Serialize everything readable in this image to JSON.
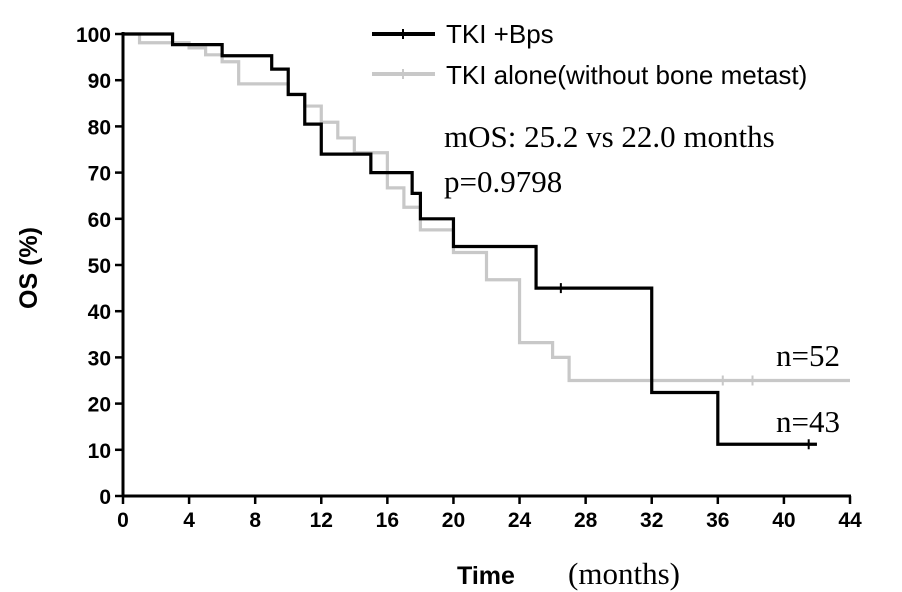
{
  "chart_data": {
    "type": "line",
    "subtype": "kaplan-meier-step",
    "xlabel": "Time",
    "xlabel_unit": "(months)",
    "ylabel": "OS (%)",
    "xlim": [
      0,
      44
    ],
    "ylim": [
      0,
      100
    ],
    "x_ticks": [
      "0",
      "4",
      "8",
      "12",
      "16",
      "20",
      "24",
      "28",
      "32",
      "36",
      "40",
      "44"
    ],
    "y_ticks": [
      "0",
      "10",
      "20",
      "30",
      "40",
      "50",
      "60",
      "70",
      "80",
      "90",
      "100"
    ],
    "grid": false,
    "legend_position": "top-right",
    "annotations": {
      "stats_line1": "mOS: 25.2 vs 22.0 months",
      "stats_line2": "p=0.9798",
      "n_gray": "n=52",
      "n_black": "n=43"
    },
    "series": [
      {
        "name": "TKI +Bps",
        "color": "#000000",
        "steps": [
          [
            0,
            100
          ],
          [
            3,
            97.7
          ],
          [
            6,
            95.3
          ],
          [
            9,
            92.4
          ],
          [
            10,
            86.9
          ],
          [
            11,
            80.5
          ],
          [
            12,
            74.0
          ],
          [
            15,
            70.0
          ],
          [
            17.5,
            65.5
          ],
          [
            18,
            60.0
          ],
          [
            20,
            54.0
          ],
          [
            25,
            45.0
          ],
          [
            32,
            22.4
          ],
          [
            36,
            11.2
          ],
          [
            42,
            11.2
          ]
        ],
        "censors": [
          [
            26.5,
            45.0
          ],
          [
            41.5,
            11.2
          ]
        ]
      },
      {
        "name": "TKI alone(without bone metast)",
        "color": "#c8c8c8",
        "steps": [
          [
            0,
            100
          ],
          [
            1,
            98.1
          ],
          [
            4,
            97.0
          ],
          [
            5,
            95.5
          ],
          [
            6,
            94.0
          ],
          [
            7,
            89.2
          ],
          [
            10,
            87.0
          ],
          [
            11,
            84.4
          ],
          [
            12,
            80.9
          ],
          [
            13,
            77.5
          ],
          [
            14,
            74.3
          ],
          [
            16,
            66.7
          ],
          [
            17,
            62.5
          ],
          [
            18,
            57.6
          ],
          [
            20,
            52.7
          ],
          [
            22,
            46.8
          ],
          [
            24,
            33.2
          ],
          [
            26,
            30.0
          ],
          [
            27,
            25.0
          ],
          [
            44,
            25.0
          ]
        ],
        "censors": [
          [
            3,
            99.0
          ],
          [
            36.3,
            25.0
          ],
          [
            38.1,
            25.0
          ]
        ]
      }
    ]
  }
}
